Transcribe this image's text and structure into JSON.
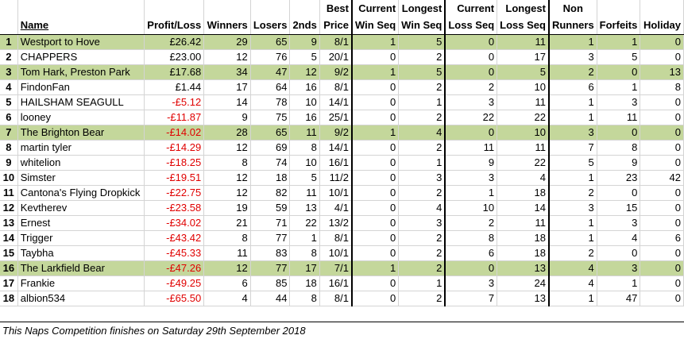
{
  "headers": {
    "row1": [
      "",
      "",
      "",
      "",
      "",
      "",
      "Best",
      "Current",
      "Longest",
      "Current",
      "Longest",
      "Non",
      "",
      ""
    ],
    "row2": [
      "",
      "Name",
      "Profit/Loss",
      "Winners",
      "Losers",
      "2nds",
      "Price",
      "Win Seq",
      "Win Seq",
      "Loss Seq",
      "Loss Seq",
      "Runners",
      "Forfeits",
      "Holiday"
    ]
  },
  "rows": [
    {
      "rank": "1",
      "name": "Westport to Hove",
      "pl": "£26.42",
      "neg": false,
      "w": "29",
      "l": "65",
      "s": "9",
      "bp": "8/1",
      "cws": "1",
      "lws": "5",
      "cls": "0",
      "lls": "11",
      "nr": "1",
      "f": "1",
      "h": "0",
      "hl": true
    },
    {
      "rank": "2",
      "name": "CHAPPERS",
      "pl": "£23.00",
      "neg": false,
      "w": "12",
      "l": "76",
      "s": "5",
      "bp": "20/1",
      "cws": "0",
      "lws": "2",
      "cls": "0",
      "lls": "17",
      "nr": "3",
      "f": "5",
      "h": "0",
      "hl": false
    },
    {
      "rank": "3",
      "name": "Tom Hark, Preston Park",
      "pl": "£17.68",
      "neg": false,
      "w": "34",
      "l": "47",
      "s": "12",
      "bp": "9/2",
      "cws": "1",
      "lws": "5",
      "cls": "0",
      "lls": "5",
      "nr": "2",
      "f": "0",
      "h": "13",
      "hl": true
    },
    {
      "rank": "4",
      "name": "FindonFan",
      "pl": "£1.44",
      "neg": false,
      "w": "17",
      "l": "64",
      "s": "16",
      "bp": "8/1",
      "cws": "0",
      "lws": "2",
      "cls": "2",
      "lls": "10",
      "nr": "6",
      "f": "1",
      "h": "8",
      "hl": false
    },
    {
      "rank": "5",
      "name": "HAILSHAM SEAGULL",
      "pl": "-£5.12",
      "neg": true,
      "w": "14",
      "l": "78",
      "s": "10",
      "bp": "14/1",
      "cws": "0",
      "lws": "1",
      "cls": "3",
      "lls": "11",
      "nr": "1",
      "f": "3",
      "h": "0",
      "hl": false
    },
    {
      "rank": "6",
      "name": "looney",
      "pl": "-£11.87",
      "neg": true,
      "w": "9",
      "l": "75",
      "s": "16",
      "bp": "25/1",
      "cws": "0",
      "lws": "2",
      "cls": "22",
      "lls": "22",
      "nr": "1",
      "f": "11",
      "h": "0",
      "hl": false
    },
    {
      "rank": "7",
      "name": "The Brighton Bear",
      "pl": "-£14.02",
      "neg": true,
      "w": "28",
      "l": "65",
      "s": "11",
      "bp": "9/2",
      "cws": "1",
      "lws": "4",
      "cls": "0",
      "lls": "10",
      "nr": "3",
      "f": "0",
      "h": "0",
      "hl": true
    },
    {
      "rank": "8",
      "name": "martin tyler",
      "pl": "-£14.29",
      "neg": true,
      "w": "12",
      "l": "69",
      "s": "8",
      "bp": "14/1",
      "cws": "0",
      "lws": "2",
      "cls": "11",
      "lls": "11",
      "nr": "7",
      "f": "8",
      "h": "0",
      "hl": false
    },
    {
      "rank": "9",
      "name": "whitelion",
      "pl": "-£18.25",
      "neg": true,
      "w": "8",
      "l": "74",
      "s": "10",
      "bp": "16/1",
      "cws": "0",
      "lws": "1",
      "cls": "9",
      "lls": "22",
      "nr": "5",
      "f": "9",
      "h": "0",
      "hl": false
    },
    {
      "rank": "10",
      "name": "Simster",
      "pl": "-£19.51",
      "neg": true,
      "w": "12",
      "l": "18",
      "s": "5",
      "bp": "11/2",
      "cws": "0",
      "lws": "3",
      "cls": "3",
      "lls": "4",
      "nr": "1",
      "f": "23",
      "h": "42",
      "hl": false
    },
    {
      "rank": "11",
      "name": "Cantona's Flying Dropkick",
      "pl": "-£22.75",
      "neg": true,
      "w": "12",
      "l": "82",
      "s": "11",
      "bp": "10/1",
      "cws": "0",
      "lws": "2",
      "cls": "1",
      "lls": "18",
      "nr": "2",
      "f": "0",
      "h": "0",
      "hl": false
    },
    {
      "rank": "12",
      "name": "Kevtherev",
      "pl": "-£23.58",
      "neg": true,
      "w": "19",
      "l": "59",
      "s": "13",
      "bp": "4/1",
      "cws": "0",
      "lws": "4",
      "cls": "10",
      "lls": "14",
      "nr": "3",
      "f": "15",
      "h": "0",
      "hl": false
    },
    {
      "rank": "13",
      "name": "Ernest",
      "pl": "-£34.02",
      "neg": true,
      "w": "21",
      "l": "71",
      "s": "22",
      "bp": "13/2",
      "cws": "0",
      "lws": "3",
      "cls": "2",
      "lls": "11",
      "nr": "1",
      "f": "3",
      "h": "0",
      "hl": false
    },
    {
      "rank": "14",
      "name": "Trigger",
      "pl": "-£43.42",
      "neg": true,
      "w": "8",
      "l": "77",
      "s": "1",
      "bp": "8/1",
      "cws": "0",
      "lws": "2",
      "cls": "8",
      "lls": "18",
      "nr": "1",
      "f": "4",
      "h": "6",
      "hl": false
    },
    {
      "rank": "15",
      "name": "Taybha",
      "pl": "-£45.33",
      "neg": true,
      "w": "11",
      "l": "83",
      "s": "8",
      "bp": "10/1",
      "cws": "0",
      "lws": "2",
      "cls": "6",
      "lls": "18",
      "nr": "2",
      "f": "0",
      "h": "0",
      "hl": false
    },
    {
      "rank": "16",
      "name": "The Larkfield Bear",
      "pl": "-£47.26",
      "neg": true,
      "w": "12",
      "l": "77",
      "s": "17",
      "bp": "7/1",
      "cws": "1",
      "lws": "2",
      "cls": "0",
      "lls": "13",
      "nr": "4",
      "f": "3",
      "h": "0",
      "hl": true
    },
    {
      "rank": "17",
      "name": "Frankie",
      "pl": "-£49.25",
      "neg": true,
      "w": "6",
      "l": "85",
      "s": "18",
      "bp": "16/1",
      "cws": "0",
      "lws": "1",
      "cls": "3",
      "lls": "24",
      "nr": "4",
      "f": "1",
      "h": "0",
      "hl": false
    },
    {
      "rank": "18",
      "name": "albion534",
      "pl": "-£65.50",
      "neg": true,
      "w": "4",
      "l": "44",
      "s": "8",
      "bp": "8/1",
      "cws": "0",
      "lws": "2",
      "cls": "7",
      "lls": "13",
      "nr": "1",
      "f": "47",
      "h": "0",
      "hl": false
    }
  ],
  "footer": "This Naps Competition finishes on Saturday 29th September 2018"
}
